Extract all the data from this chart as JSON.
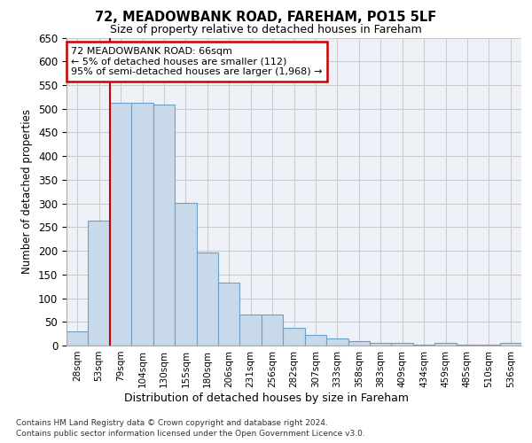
{
  "title1": "72, MEADOWBANK ROAD, FAREHAM, PO15 5LF",
  "title2": "Size of property relative to detached houses in Fareham",
  "xlabel": "Distribution of detached houses by size in Fareham",
  "ylabel": "Number of detached properties",
  "categories": [
    "28sqm",
    "53sqm",
    "79sqm",
    "104sqm",
    "130sqm",
    "155sqm",
    "180sqm",
    "206sqm",
    "231sqm",
    "256sqm",
    "282sqm",
    "307sqm",
    "333sqm",
    "358sqm",
    "383sqm",
    "409sqm",
    "434sqm",
    "459sqm",
    "485sqm",
    "510sqm",
    "536sqm"
  ],
  "values": [
    30,
    263,
    513,
    512,
    508,
    302,
    196,
    132,
    65,
    65,
    37,
    22,
    15,
    9,
    6,
    5,
    2,
    5,
    2,
    2,
    5
  ],
  "bar_color": "#c8d9ea",
  "bar_edge_color": "#6ca0c8",
  "annotation_text": "72 MEADOWBANK ROAD: 66sqm\n← 5% of detached houses are smaller (112)\n95% of semi-detached houses are larger (1,968) →",
  "annotation_box_color": "#ffffff",
  "annotation_box_edge": "#cc0000",
  "vline_color": "#cc0000",
  "vline_x": 1.52,
  "ylim": [
    0,
    650
  ],
  "yticks": [
    0,
    50,
    100,
    150,
    200,
    250,
    300,
    350,
    400,
    450,
    500,
    550,
    600,
    650
  ],
  "grid_color": "#cccccc",
  "background_color": "#eef2f8",
  "footer1": "Contains HM Land Registry data © Crown copyright and database right 2024.",
  "footer2": "Contains public sector information licensed under the Open Government Licence v3.0."
}
